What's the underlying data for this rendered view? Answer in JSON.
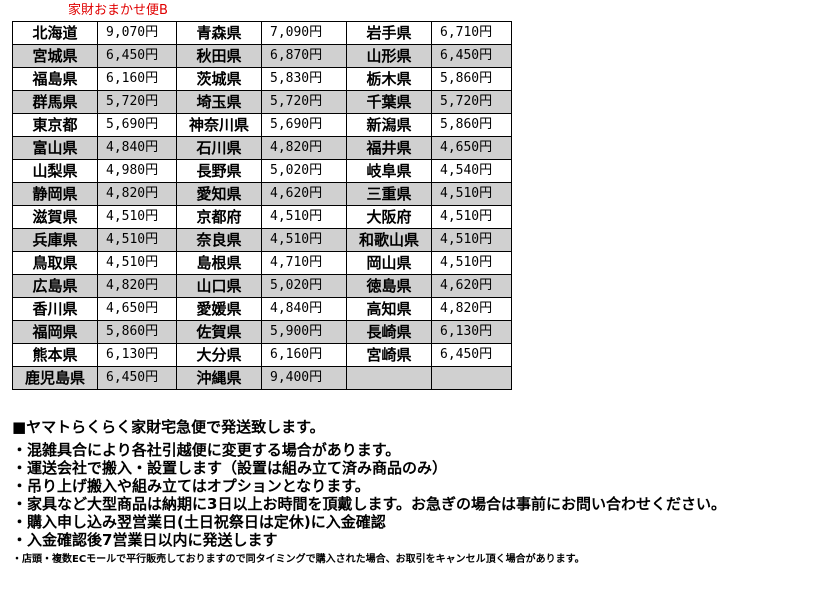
{
  "title": "家財おまかせ便B",
  "colors": {
    "title": "#e00000",
    "row_alt": "#d0d0d0"
  },
  "rows": [
    [
      [
        "北海道",
        "9,070円"
      ],
      [
        "青森県",
        "7,090円"
      ],
      [
        "岩手県",
        "6,710円"
      ]
    ],
    [
      [
        "宮城県",
        "6,450円"
      ],
      [
        "秋田県",
        "6,870円"
      ],
      [
        "山形県",
        "6,450円"
      ]
    ],
    [
      [
        "福島県",
        "6,160円"
      ],
      [
        "茨城県",
        "5,830円"
      ],
      [
        "栃木県",
        "5,860円"
      ]
    ],
    [
      [
        "群馬県",
        "5,720円"
      ],
      [
        "埼玉県",
        "5,720円"
      ],
      [
        "千葉県",
        "5,720円"
      ]
    ],
    [
      [
        "東京都",
        "5,690円"
      ],
      [
        "神奈川県",
        "5,690円"
      ],
      [
        "新潟県",
        "5,860円"
      ]
    ],
    [
      [
        "富山県",
        "4,840円"
      ],
      [
        "石川県",
        "4,820円"
      ],
      [
        "福井県",
        "4,650円"
      ]
    ],
    [
      [
        "山梨県",
        "4,980円"
      ],
      [
        "長野県",
        "5,020円"
      ],
      [
        "岐阜県",
        "4,540円"
      ]
    ],
    [
      [
        "静岡県",
        "4,820円"
      ],
      [
        "愛知県",
        "4,620円"
      ],
      [
        "三重県",
        "4,510円"
      ]
    ],
    [
      [
        "滋賀県",
        "4,510円"
      ],
      [
        "京都府",
        "4,510円"
      ],
      [
        "大阪府",
        "4,510円"
      ]
    ],
    [
      [
        "兵庫県",
        "4,510円"
      ],
      [
        "奈良県",
        "4,510円"
      ],
      [
        "和歌山県",
        "4,510円"
      ]
    ],
    [
      [
        "鳥取県",
        "4,510円"
      ],
      [
        "島根県",
        "4,710円"
      ],
      [
        "岡山県",
        "4,510円"
      ]
    ],
    [
      [
        "広島県",
        "4,820円"
      ],
      [
        "山口県",
        "5,020円"
      ],
      [
        "徳島県",
        "4,620円"
      ]
    ],
    [
      [
        "香川県",
        "4,650円"
      ],
      [
        "愛媛県",
        "4,840円"
      ],
      [
        "高知県",
        "4,820円"
      ]
    ],
    [
      [
        "福岡県",
        "5,860円"
      ],
      [
        "佐賀県",
        "5,900円"
      ],
      [
        "長崎県",
        "6,130円"
      ]
    ],
    [
      [
        "熊本県",
        "6,130円"
      ],
      [
        "大分県",
        "6,160円"
      ],
      [
        "宮崎県",
        "6,450円"
      ]
    ],
    [
      [
        "鹿児島県",
        "6,450円"
      ],
      [
        "沖縄県",
        "9,400円"
      ],
      [
        "",
        ""
      ]
    ]
  ],
  "notes": {
    "heading": "■ヤマトらくらく家財宅急便で発送致します。",
    "bullets": [
      "・混雑具合により各社引越便に変更する場合があります。",
      "・運送会社で搬入・設置します（設置は組み立て済み商品のみ）",
      "・吊り上げ搬入や組み立てはオプションとなります。",
      "・家具など大型商品は納期に3日以上お時間を頂戴します。お急ぎの場合は事前にお問い合わせください。",
      "・購入申し込み翌営業日(土日祝祭日は定休)に入金確認",
      "・入金確認後7営業日以内に発送します"
    ],
    "small": "・店頭・複数ECモールで平行販売しておりますので同タイミングで購入された場合、お取引をキャンセル頂く場合があります。"
  }
}
